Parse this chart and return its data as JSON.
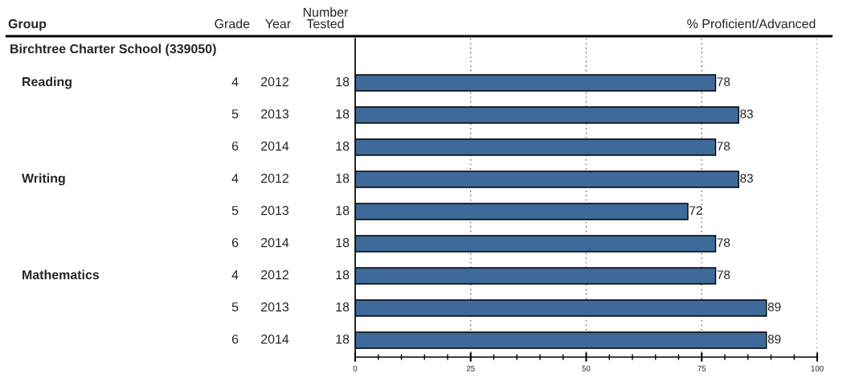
{
  "chart_data": {
    "type": "bar",
    "orientation": "horizontal",
    "xlabel": "% Proficient/Advanced",
    "annotations": [
      "Group",
      "Grade",
      "Year",
      "Number\nTested",
      "Birchtree Charter School (339050)"
    ],
    "categories": [
      "Reading 4 2012 18",
      "5 2013 18",
      "6 2014 18",
      "Writing 4 2012 18",
      "5 2013 18",
      "6 2014 18",
      "Mathematics 4 2012 18",
      "5 2013 18",
      "6 2014 18"
    ],
    "values": [
      78,
      83,
      78,
      83,
      72,
      78,
      78,
      89,
      89
    ],
    "color": "#3d6a99",
    "xlim": [
      0,
      100
    ],
    "xticks": [
      0,
      25,
      50,
      75,
      100
    ],
    "grid": "x",
    "data_labels": true
  }
}
